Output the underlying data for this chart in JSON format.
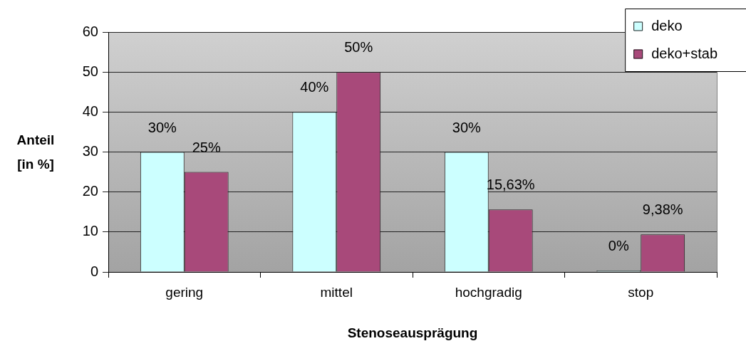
{
  "chart_data": {
    "type": "bar",
    "xlabel": "Stenoseausprägung",
    "ylabel": "Anteil [in %]",
    "categories": [
      "gering",
      "mittel",
      "hochgradig",
      "stop"
    ],
    "series": [
      {
        "name": "deko",
        "color": "#ccffff",
        "values": [
          30,
          40,
          30,
          0
        ],
        "value_labels": [
          "30%",
          "40%",
          "30%",
          "0%"
        ]
      },
      {
        "name": "deko+stab",
        "color": "#a8497a",
        "values": [
          25,
          50,
          15.63,
          9.38
        ],
        "value_labels": [
          "25%",
          "50%",
          "15,63%",
          "9,38%"
        ]
      }
    ],
    "ylim": [
      0,
      60
    ],
    "yticks": [
      0,
      10,
      20,
      30,
      40,
      50,
      60
    ],
    "grid": "y",
    "legend": "top right"
  }
}
